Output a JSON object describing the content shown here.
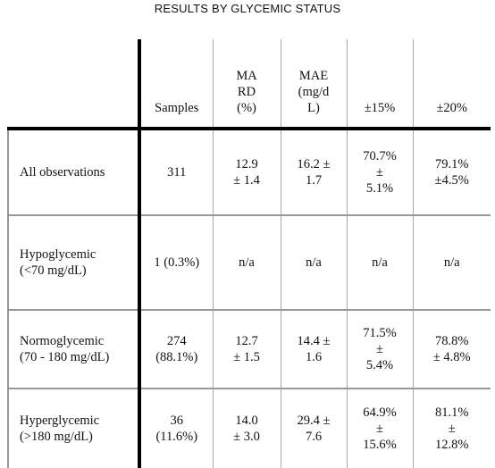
{
  "title": "RESULTS BY GLYCEMIC STATUS",
  "headers": {
    "label": "",
    "samples": "Samples",
    "mard": [
      "MA",
      "RD",
      "(%)"
    ],
    "mae": [
      "MAE",
      "(mg/d",
      "L)"
    ],
    "pm15": "±15%",
    "pm20": "±20%"
  },
  "rows": [
    {
      "label": [
        "All observations"
      ],
      "samples": [
        "311"
      ],
      "mard": [
        "12.9",
        "± 1.4"
      ],
      "mae": [
        "16.2 ±",
        "1.7"
      ],
      "pm15": [
        "70.7%",
        "±",
        "5.1%"
      ],
      "pm20": [
        "79.1%",
        "±4.5%"
      ]
    },
    {
      "label": [
        "Hypoglycemic",
        "(<70 mg/dL)"
      ],
      "samples": [
        "1 (0.3%)"
      ],
      "mard": [
        "n/a"
      ],
      "mae": [
        "n/a"
      ],
      "pm15": [
        "n/a"
      ],
      "pm20": [
        "n/a"
      ]
    },
    {
      "label": [
        "Normoglycemic",
        "(70 - 180 mg/dL)"
      ],
      "samples": [
        "274",
        "(88.1%)"
      ],
      "mard": [
        "12.7",
        "± 1.5"
      ],
      "mae": [
        "14.4 ±",
        "1.6"
      ],
      "pm15": [
        "71.5%",
        "±",
        "5.4%"
      ],
      "pm20": [
        "78.8%",
        "± 4.8%"
      ]
    },
    {
      "label": [
        "Hyperglycemic",
        "(>180 mg/dL)"
      ],
      "samples": [
        "36",
        "(11.6%)"
      ],
      "mard": [
        "14.0",
        "± 3.0"
      ],
      "mae": [
        "29.4 ±",
        "7.6"
      ],
      "pm15": [
        "64.9%",
        "±",
        "15.6%"
      ],
      "pm20": [
        "81.1%",
        "±",
        "12.8%"
      ]
    }
  ]
}
